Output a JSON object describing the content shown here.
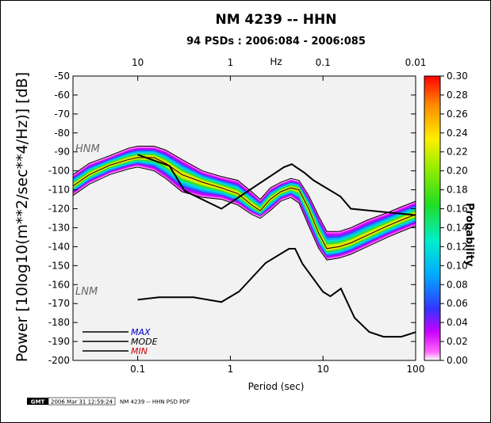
{
  "chart_data": {
    "type": "heatmap",
    "title": "NM 4239 -- HHN",
    "subtitle": "94 PSDs : 2006:084 - 2006:085",
    "xlabel": "Period (sec)",
    "ylabel": "Power [10log10(m**2/sec**4/Hz)] [dB]",
    "top_axis_label": "Hz",
    "x_scale": "log",
    "xlim": [
      0.02,
      100
    ],
    "ylim": [
      -200,
      -50
    ],
    "x_ticks": [
      "0.1",
      "1",
      "10",
      "100"
    ],
    "top_ticks": [
      "10",
      "1",
      "0.1",
      "0.01"
    ],
    "y_ticks": [
      "-50",
      "-60",
      "-70",
      "-80",
      "-90",
      "-100",
      "-110",
      "-120",
      "-130",
      "-140",
      "-150",
      "-160",
      "-170",
      "-180",
      "-190",
      "-200"
    ],
    "colorbar": {
      "label": "Probability",
      "range": [
        0,
        0.3
      ],
      "ticks": [
        "0.30",
        "0.28",
        "0.26",
        "0.24",
        "0.22",
        "0.20",
        "0.18",
        "0.16",
        "0.14",
        "0.12",
        "0.10",
        "0.08",
        "0.06",
        "0.04",
        "0.02",
        "0.00"
      ]
    },
    "annotations": [
      "HNM",
      "LNM"
    ],
    "legend": {
      "placement": "bottom-left",
      "entries": [
        {
          "label": "MAX",
          "color": "#0000cc"
        },
        {
          "label": "MODE",
          "color": "#000000"
        },
        {
          "label": "MIN",
          "color": "#cc0000"
        }
      ]
    },
    "nhnm": {
      "x": [
        0.1,
        0.22,
        0.32,
        0.8,
        3.8,
        4.6,
        6.3,
        7.9,
        15.4,
        20,
        354.8
      ],
      "y": [
        -91.5,
        -97.4,
        -110.5,
        -120,
        -98,
        -96.5,
        -101,
        -105,
        -113.5,
        -120,
        -126
      ]
    },
    "nlnm": {
      "x": [
        0.1,
        0.17,
        0.4,
        0.8,
        1.24,
        2.4,
        4.3,
        5,
        6,
        10,
        12,
        15.6,
        21.9,
        31.6,
        45,
        70,
        101
      ],
      "y": [
        -168,
        -166.7,
        -166.7,
        -169.2,
        -163.7,
        -148.6,
        -141.1,
        -141.1,
        -149,
        -163.8,
        -166.2,
        -162.1,
        -177.5,
        -185,
        -187.5,
        -187.5,
        -185
      ]
    },
    "density": [
      {
        "x": 0.02,
        "lo": -112,
        "hi": -103,
        "mode": -108
      },
      {
        "x": 0.03,
        "lo": -106,
        "hi": -97,
        "mode": -102
      },
      {
        "x": 0.05,
        "lo": -101,
        "hi": -93,
        "mode": -97
      },
      {
        "x": 0.08,
        "lo": -98,
        "hi": -89,
        "mode": -94
      },
      {
        "x": 0.1,
        "lo": -97,
        "hi": -88,
        "mode": -93
      },
      {
        "x": 0.15,
        "lo": -99,
        "hi": -88,
        "mode": -93
      },
      {
        "x": 0.2,
        "lo": -103,
        "hi": -90,
        "mode": -96
      },
      {
        "x": 0.3,
        "lo": -110,
        "hi": -95,
        "mode": -102
      },
      {
        "x": 0.5,
        "lo": -113,
        "hi": -101,
        "mode": -106
      },
      {
        "x": 0.8,
        "lo": -114,
        "hi": -104,
        "mode": -109
      },
      {
        "x": 1.2,
        "lo": -117,
        "hi": -106,
        "mode": -112
      },
      {
        "x": 1.7,
        "lo": -122,
        "hi": -112,
        "mode": -118
      },
      {
        "x": 2.1,
        "lo": -124,
        "hi": -116,
        "mode": -121
      },
      {
        "x": 2.7,
        "lo": -120,
        "hi": -110,
        "mode": -115
      },
      {
        "x": 3.5,
        "lo": -115,
        "hi": -107,
        "mode": -111
      },
      {
        "x": 4.5,
        "lo": -113,
        "hi": -105,
        "mode": -109
      },
      {
        "x": 5.5,
        "lo": -116,
        "hi": -106,
        "mode": -110
      },
      {
        "x": 7,
        "lo": -128,
        "hi": -114,
        "mode": -120
      },
      {
        "x": 9,
        "lo": -140,
        "hi": -125,
        "mode": -133
      },
      {
        "x": 11,
        "lo": -146,
        "hi": -133,
        "mode": -141
      },
      {
        "x": 15,
        "lo": -145,
        "hi": -133,
        "mode": -140
      },
      {
        "x": 20,
        "lo": -143,
        "hi": -131,
        "mode": -138
      },
      {
        "x": 30,
        "lo": -139,
        "hi": -127,
        "mode": -134
      },
      {
        "x": 50,
        "lo": -134,
        "hi": -123,
        "mode": -129
      },
      {
        "x": 70,
        "lo": -131,
        "hi": -120,
        "mode": -126
      },
      {
        "x": 100,
        "lo": -128,
        "hi": -117,
        "mode": -123
      }
    ]
  },
  "footer": {
    "logo_text": "GMT",
    "timestamp": "2006 Mar 31 12:59:24",
    "caption": "NM 4239 -- HHN PSD PDF"
  }
}
